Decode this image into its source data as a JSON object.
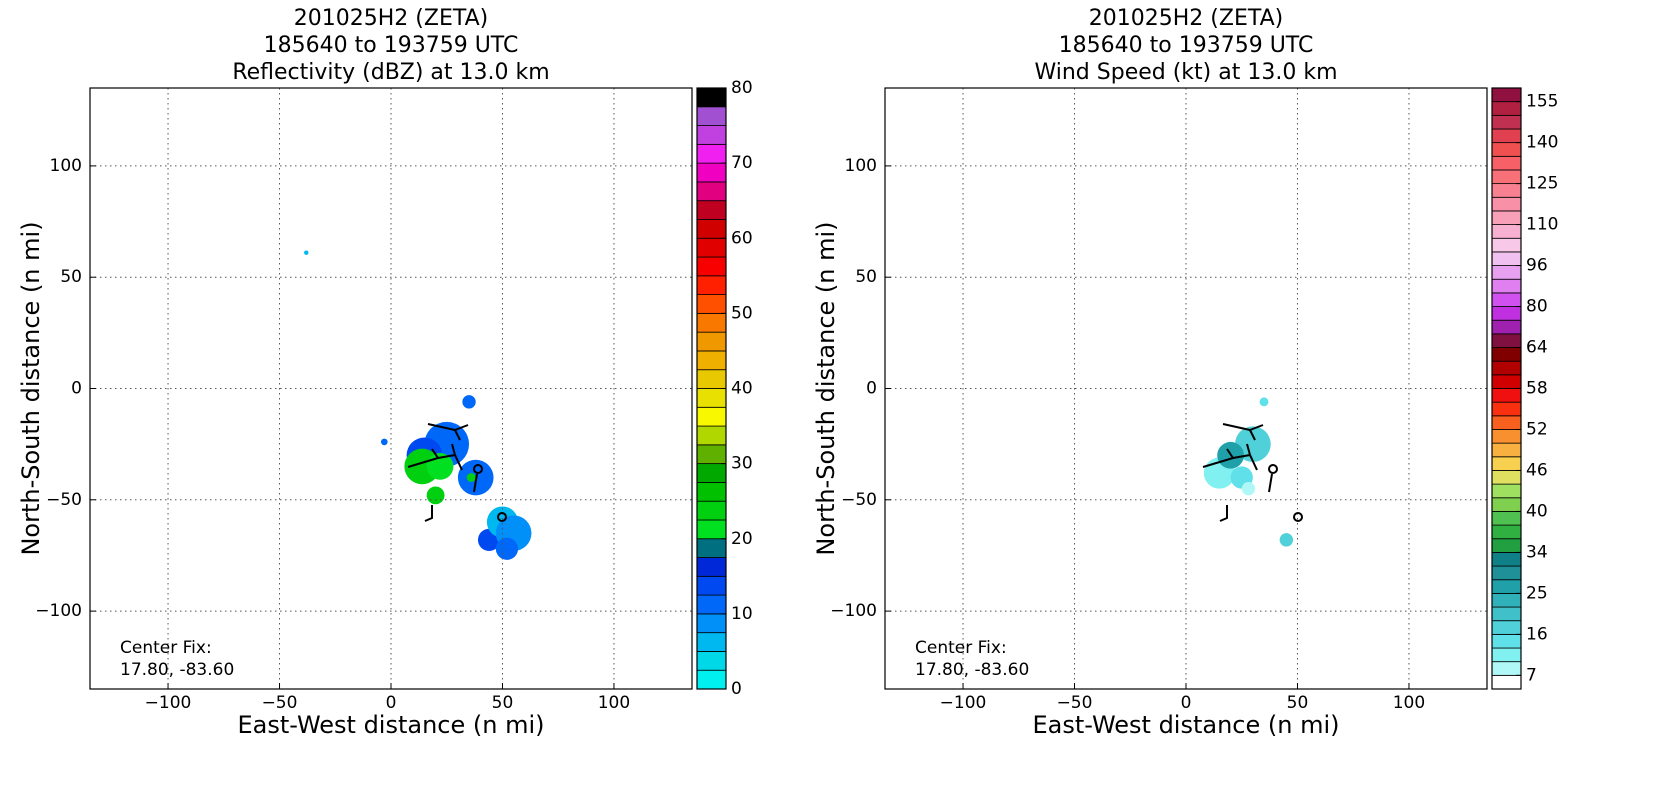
{
  "chart_data": [
    {
      "type": "radar",
      "title": [
        "201025H2 (ZETA)",
        "185640 to 193759 UTC",
        "Reflectivity (dBZ) at 13.0 km"
      ],
      "xlabel": "East-West distance (n mi)",
      "ylabel": "North-South distance (n mi)",
      "xlim": [
        -135,
        135
      ],
      "ylim": [
        -135,
        135
      ],
      "xticks": [
        {
          "value": -100,
          "label": "−100"
        },
        {
          "value": -50,
          "label": "−50"
        },
        0,
        50,
        100
      ],
      "yticks": [
        {
          "value": -100,
          "label": "−100"
        },
        {
          "value": -50,
          "label": "−50"
        },
        0,
        50,
        100
      ],
      "grid": true,
      "annotation": [
        "Center Fix:",
        "17.80, -83.60"
      ],
      "colorbar": {
        "bounds": [
          0,
          2.5,
          5,
          7.5,
          10,
          12.5,
          15,
          17.5,
          20,
          22.5,
          25,
          27.5,
          30,
          32.5,
          35,
          37.5,
          40,
          42.5,
          45,
          47.5,
          50,
          52.5,
          55,
          57.5,
          60,
          62.5,
          65,
          67.5,
          70,
          72.5,
          75,
          77.5,
          80
        ],
        "colors": [
          "#00f0f0",
          "#00d8e8",
          "#00b8f0",
          "#0090f8",
          "#0068f8",
          "#0048f0",
          "#0028d8",
          "#007080",
          "#00e020",
          "#00d010",
          "#00c000",
          "#00a800",
          "#60b000",
          "#b0d800",
          "#f8f800",
          "#e8e000",
          "#e8c800",
          "#f0b000",
          "#f09800",
          "#f87800",
          "#ff5000",
          "#ff2000",
          "#f80000",
          "#e00000",
          "#d00000",
          "#c00020",
          "#e00080",
          "#f000c0",
          "#f020f0",
          "#c040e0",
          "#a050d0",
          "#000000"
        ],
        "ticks": [
          0,
          10,
          20,
          30,
          40,
          50,
          60,
          70,
          80
        ]
      },
      "echoes": [
        {
          "x": -38,
          "y": 61,
          "r": 1,
          "value": 5
        },
        {
          "x": -3,
          "y": -24,
          "r": 1.5,
          "value": 10
        },
        {
          "x": 35,
          "y": -6,
          "r": 3,
          "value": 10
        },
        {
          "x": 25,
          "y": -25,
          "r": 10,
          "value": 10
        },
        {
          "x": 15,
          "y": -30,
          "r": 8,
          "value": 12.5
        },
        {
          "x": 38,
          "y": -40,
          "r": 8,
          "value": 10
        },
        {
          "x": 14,
          "y": -35,
          "r": 8,
          "value": 22.5
        },
        {
          "x": 22,
          "y": -35,
          "r": 6,
          "value": 20
        },
        {
          "x": 36,
          "y": -40,
          "r": 2,
          "value": 22.5
        },
        {
          "x": 20,
          "y": -48,
          "r": 4,
          "value": 22.5
        },
        {
          "x": 44,
          "y": -68,
          "r": 5,
          "value": 12.5
        },
        {
          "x": 50,
          "y": -60,
          "r": 7,
          "value": 5
        },
        {
          "x": 55,
          "y": -65,
          "r": 8,
          "value": 7.5
        },
        {
          "x": 52,
          "y": -72,
          "r": 5,
          "value": 10
        }
      ]
    },
    {
      "type": "radar",
      "title": [
        "201025H2 (ZETA)",
        "185640 to 193759 UTC",
        "Wind Speed (kt) at 13.0 km"
      ],
      "xlabel": "East-West distance (n mi)",
      "ylabel": "North-South distance (n mi)",
      "xlim": [
        -135,
        135
      ],
      "ylim": [
        -135,
        135
      ],
      "xticks": [
        {
          "value": -100,
          "label": "−100"
        },
        {
          "value": -50,
          "label": "−50"
        },
        0,
        50,
        100
      ],
      "yticks": [
        {
          "value": -100,
          "label": "−100"
        },
        {
          "value": -50,
          "label": "−50"
        },
        0,
        50,
        100
      ],
      "grid": true,
      "annotation": [
        "Center Fix:",
        "17.80, -83.60"
      ],
      "colorbar": {
        "bounds": [
          4,
          7,
          10,
          13,
          16,
          19,
          22,
          25,
          28,
          31,
          34,
          36,
          38,
          40,
          42,
          44,
          46,
          48,
          50,
          52,
          54,
          56,
          58,
          60,
          62,
          64,
          69,
          75,
          80,
          85,
          91,
          96,
          101,
          105,
          110,
          115,
          120,
          125,
          130,
          135,
          140,
          145,
          150,
          155,
          160
        ],
        "colors": [
          "#ffffff",
          "#b0f8f8",
          "#80f0f0",
          "#60e0e8",
          "#50d0d8",
          "#40c0c8",
          "#30b0b8",
          "#20a0a8",
          "#209098",
          "#108088",
          "#20a040",
          "#30b040",
          "#50c050",
          "#80d050",
          "#a0e060",
          "#e0e060",
          "#f8d050",
          "#f8b040",
          "#f89030",
          "#f86020",
          "#f83010",
          "#f01010",
          "#d00000",
          "#b00000",
          "#800000",
          "#801040",
          "#a020b0",
          "#c030e0",
          "#d050f0",
          "#e080f0",
          "#e8a0f0",
          "#f0c0f0",
          "#f8c8e8",
          "#f8b0d0",
          "#f8a0b8",
          "#f890a8",
          "#f88090",
          "#f87078",
          "#f86068",
          "#f05050",
          "#e04050",
          "#c03050",
          "#b02040",
          "#901040"
        ],
        "ticks": [
          7,
          16,
          25,
          34,
          40,
          46,
          52,
          58,
          64,
          80,
          96,
          110,
          125,
          140,
          155
        ]
      },
      "echoes": [
        {
          "x": 35,
          "y": -6,
          "r": 2,
          "value": 13
        },
        {
          "x": 30,
          "y": -25,
          "r": 8,
          "value": 16
        },
        {
          "x": 15,
          "y": -38,
          "r": 7,
          "value": 10
        },
        {
          "x": 25,
          "y": -40,
          "r": 5,
          "value": 13
        },
        {
          "x": 20,
          "y": -30,
          "r": 6,
          "value": 25
        },
        {
          "x": 28,
          "y": -45,
          "r": 3,
          "value": 7
        },
        {
          "x": 45,
          "y": -68,
          "r": 3,
          "value": 16
        }
      ]
    }
  ]
}
